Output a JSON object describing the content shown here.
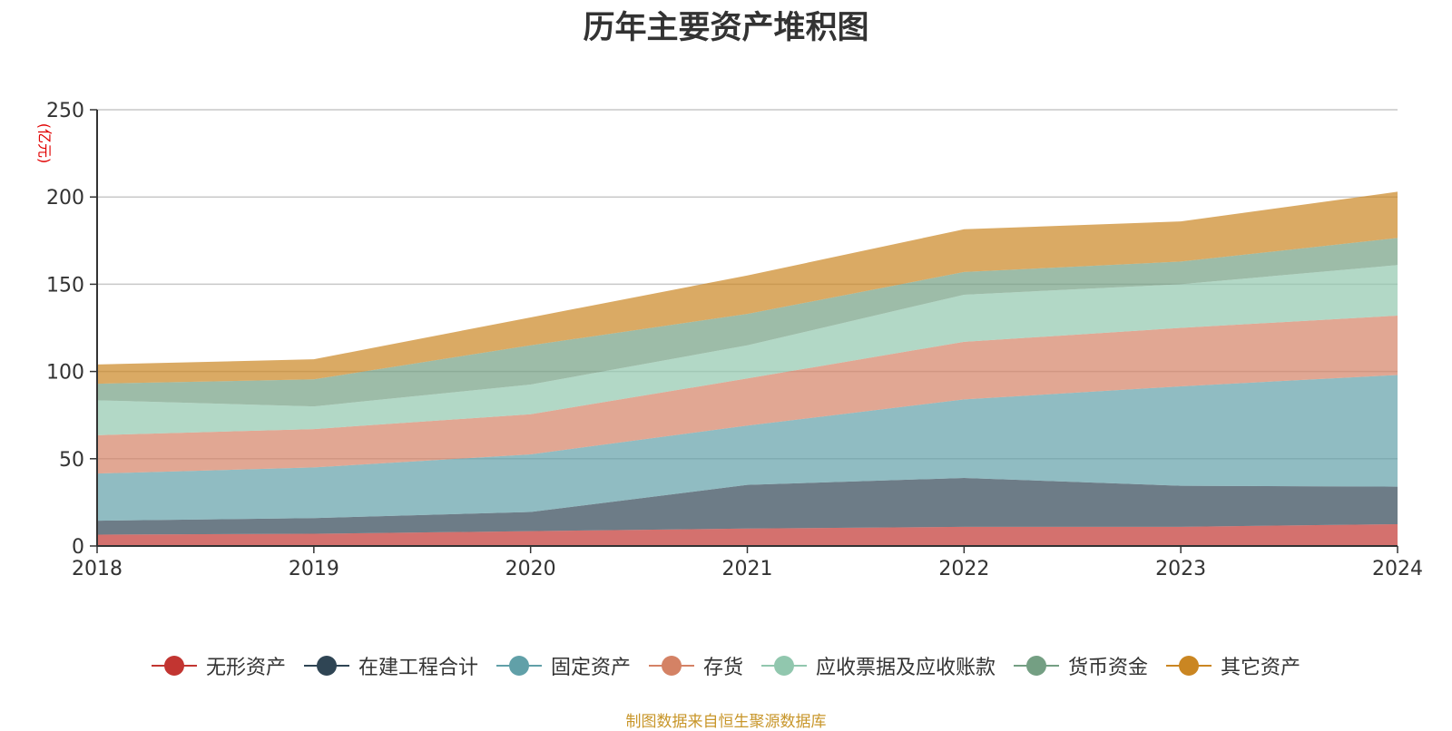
{
  "title": "历年主要资产堆积图",
  "unit_label": "(亿元)",
  "source": "制图数据来自恒生聚源数据库",
  "chart_data": {
    "type": "area",
    "stacked": true,
    "title": "历年主要资产堆积图",
    "ylabel": "(亿元)",
    "xlabel": "",
    "categories": [
      "2018",
      "2019",
      "2020",
      "2021",
      "2022",
      "2023",
      "2024"
    ],
    "ylim": [
      0,
      250
    ],
    "yticks": [
      0,
      50,
      100,
      150,
      200,
      250
    ],
    "grid": true,
    "legend_position": "bottom",
    "series": [
      {
        "name": "无形资产",
        "color": "#c23531",
        "values": [
          6.5,
          7.0,
          8.5,
          10.0,
          11.0,
          11.0,
          12.5
        ]
      },
      {
        "name": "在建工程合计",
        "color": "#2f4554",
        "values": [
          8.0,
          9.0,
          11.0,
          25.0,
          28.0,
          23.5,
          21.5
        ]
      },
      {
        "name": "固定资产",
        "color": "#61a0a8",
        "values": [
          27.0,
          29.0,
          33.0,
          34.0,
          45.0,
          57.0,
          64.0
        ]
      },
      {
        "name": "存货",
        "color": "#d48265",
        "values": [
          22.0,
          22.0,
          23.0,
          27.0,
          33.0,
          33.5,
          34.0
        ]
      },
      {
        "name": "应收票据及应收账款",
        "color": "#91c7ae",
        "values": [
          20.0,
          13.0,
          17.0,
          19.0,
          27.0,
          25.0,
          29.0
        ]
      },
      {
        "name": "货币资金",
        "color": "#749f83",
        "values": [
          9.5,
          15.5,
          22.5,
          18.0,
          13.0,
          13.0,
          15.5
        ]
      },
      {
        "name": "其它资产",
        "color": "#ca8622",
        "values": [
          11.0,
          11.5,
          16.0,
          22.0,
          24.5,
          23.0,
          26.5
        ]
      }
    ]
  }
}
